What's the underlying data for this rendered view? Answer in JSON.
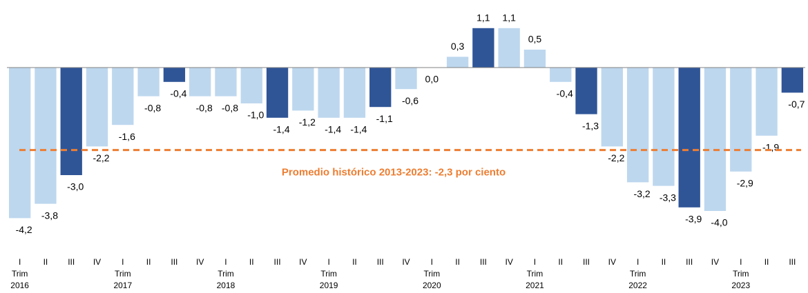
{
  "chart_data": {
    "type": "bar",
    "categories": [
      "I",
      "II",
      "III",
      "IV",
      "I",
      "II",
      "III",
      "IV",
      "I",
      "II",
      "III",
      "IV",
      "I",
      "II",
      "III",
      "IV",
      "I",
      "II",
      "III",
      "IV",
      "I",
      "II",
      "III",
      "IV",
      "I",
      "II",
      "III",
      "IV",
      "I",
      "II",
      "III"
    ],
    "groups": [
      {
        "label": "Trim",
        "year": "2016"
      },
      {
        "label": "Trim",
        "year": "2017"
      },
      {
        "label": "Trim",
        "year": "2018"
      },
      {
        "label": "Trim",
        "year": "2019"
      },
      {
        "label": "Trim",
        "year": "2020"
      },
      {
        "label": "Trim",
        "year": "2021"
      },
      {
        "label": "Trim",
        "year": "2022"
      },
      {
        "label": "Trim",
        "year": "2023"
      }
    ],
    "values": [
      -4.2,
      -3.8,
      -3.0,
      -2.2,
      -1.6,
      -0.8,
      -0.4,
      -0.8,
      -0.8,
      -1.0,
      -1.4,
      -1.2,
      -1.4,
      -1.4,
      -1.1,
      -0.6,
      0.0,
      0.3,
      1.1,
      1.1,
      0.5,
      -0.4,
      -1.3,
      -2.2,
      -3.2,
      -3.3,
      -3.9,
      -4.0,
      -2.9,
      -1.9,
      -0.7
    ],
    "value_labels": [
      "-4,2",
      "-3,8",
      "-3,0",
      "-2,2",
      "-1,6",
      "-0,8",
      "-0,4",
      "-0,8",
      "-0,8",
      "-1,0",
      "-1,4",
      "-1,2",
      "-1,4",
      "-1,4",
      "-1,1",
      "-0,6",
      "0,0",
      "0,3",
      "1,1",
      "1,1",
      "0,5",
      "-0,4",
      "-1,3",
      "-2,2",
      "-3,2",
      "-3,3",
      "-3,9",
      "-4,0",
      "-2,9",
      "-1,9",
      "-0,7"
    ],
    "colors": [
      "#bdd7ee",
      "#bdd7ee",
      "#2f5597",
      "#bdd7ee",
      "#bdd7ee",
      "#bdd7ee",
      "#2f5597",
      "#bdd7ee",
      "#bdd7ee",
      "#bdd7ee",
      "#2f5597",
      "#bdd7ee",
      "#bdd7ee",
      "#bdd7ee",
      "#2f5597",
      "#bdd7ee",
      "#bdd7ee",
      "#bdd7ee",
      "#2f5597",
      "#bdd7ee",
      "#bdd7ee",
      "#bdd7ee",
      "#2f5597",
      "#bdd7ee",
      "#bdd7ee",
      "#bdd7ee",
      "#2f5597",
      "#bdd7ee",
      "#bdd7ee",
      "#bdd7ee",
      "#2f5597"
    ],
    "ylim": [
      -4.5,
      1.5
    ],
    "reference_line": {
      "value": -2.3,
      "label": "Promedio histórico 2013-2023: -2,3 por ciento",
      "color": "#ed7d31"
    }
  }
}
